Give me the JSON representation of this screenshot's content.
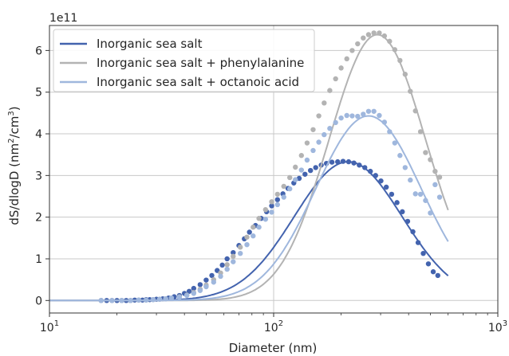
{
  "chart_data": {
    "type": "scatter",
    "title": "",
    "xlabel": "Diameter (nm)",
    "ylabel": "dS/dlogD (nm²/cm³)",
    "ylabel_parts": {
      "prefix": "dS/dlogD (nm",
      "sup1": "2",
      "mid": "/cm",
      "sup2": "3",
      "suffix": ")"
    },
    "y_offset_text": "1e11",
    "xscale": "log",
    "xlim": [
      10,
      1000
    ],
    "ylim": [
      -0.3,
      6.6
    ],
    "y_multiplier": 100000000000.0,
    "x_ticks": [
      10,
      100,
      1000
    ],
    "x_tick_labels": [
      {
        "base": "10",
        "exp": "1"
      },
      {
        "base": "10",
        "exp": "2"
      },
      {
        "base": "10",
        "exp": "3"
      }
    ],
    "y_ticks": [
      0,
      1,
      2,
      3,
      4,
      5,
      6
    ],
    "y_tick_labels": [
      "0",
      "1",
      "2",
      "3",
      "4",
      "5",
      "6"
    ],
    "grid": true,
    "legend_position": "top-left",
    "series": [
      {
        "name": "Inorganic sea salt",
        "color": "#4363ae",
        "fit": {
          "peak_x": 215,
          "peak_y": 3.33,
          "sigma": 0.24,
          "x_min": 10,
          "x_max": 600
        },
        "points": [
          [
            17,
            0.0
          ],
          [
            18,
            0.0
          ],
          [
            19,
            0.0
          ],
          [
            20,
            0.0
          ],
          [
            21,
            0.0
          ],
          [
            22,
            0.0
          ],
          [
            23,
            0.0
          ],
          [
            24,
            0.01
          ],
          [
            25,
            0.01
          ],
          [
            26,
            0.01
          ],
          [
            27,
            0.02
          ],
          [
            28,
            0.02
          ],
          [
            30,
            0.03
          ],
          [
            32,
            0.04
          ],
          [
            34,
            0.06
          ],
          [
            36,
            0.09
          ],
          [
            38,
            0.12
          ],
          [
            40,
            0.17
          ],
          [
            42,
            0.22
          ],
          [
            44,
            0.29
          ],
          [
            47,
            0.38
          ],
          [
            50,
            0.49
          ],
          [
            53,
            0.6
          ],
          [
            56,
            0.72
          ],
          [
            59,
            0.85
          ],
          [
            62,
            1.0
          ],
          [
            66,
            1.15
          ],
          [
            70,
            1.32
          ],
          [
            74,
            1.48
          ],
          [
            78,
            1.64
          ],
          [
            83,
            1.8
          ],
          [
            88,
            1.97
          ],
          [
            93,
            2.13
          ],
          [
            98,
            2.27
          ],
          [
            104,
            2.42
          ],
          [
            110,
            2.56
          ],
          [
            116,
            2.69
          ],
          [
            123,
            2.82
          ],
          [
            130,
            2.93
          ],
          [
            138,
            3.03
          ],
          [
            146,
            3.12
          ],
          [
            154,
            3.19
          ],
          [
            163,
            3.25
          ],
          [
            172,
            3.29
          ],
          [
            182,
            3.32
          ],
          [
            193,
            3.33
          ],
          [
            204,
            3.34
          ],
          [
            216,
            3.33
          ],
          [
            228,
            3.3
          ],
          [
            241,
            3.25
          ],
          [
            255,
            3.19
          ],
          [
            270,
            3.1
          ],
          [
            285,
            3.0
          ],
          [
            301,
            2.87
          ],
          [
            318,
            2.72
          ],
          [
            336,
            2.55
          ],
          [
            355,
            2.35
          ],
          [
            375,
            2.13
          ],
          [
            396,
            1.9
          ],
          [
            418,
            1.65
          ],
          [
            441,
            1.39
          ],
          [
            465,
            1.13
          ],
          [
            490,
            0.88
          ],
          [
            515,
            0.69
          ],
          [
            540,
            0.6
          ]
        ]
      },
      {
        "name": "Inorganic sea salt + phenylalanine",
        "color": "#b3b3b3",
        "fit": {
          "peak_x": 290,
          "peak_y": 6.38,
          "sigma": 0.215,
          "x_min": 10,
          "x_max": 600
        },
        "points": [
          [
            17,
            0.0
          ],
          [
            19,
            0.0
          ],
          [
            21,
            0.0
          ],
          [
            23,
            0.0
          ],
          [
            25,
            0.01
          ],
          [
            27,
            0.01
          ],
          [
            29,
            0.02
          ],
          [
            31,
            0.03
          ],
          [
            33,
            0.04
          ],
          [
            35,
            0.06
          ],
          [
            38,
            0.09
          ],
          [
            41,
            0.13
          ],
          [
            44,
            0.19
          ],
          [
            47,
            0.27
          ],
          [
            50,
            0.37
          ],
          [
            54,
            0.5
          ],
          [
            58,
            0.66
          ],
          [
            62,
            0.86
          ],
          [
            66,
            1.06
          ],
          [
            71,
            1.28
          ],
          [
            76,
            1.52
          ],
          [
            81,
            1.76
          ],
          [
            86,
            1.97
          ],
          [
            92,
            2.18
          ],
          [
            98,
            2.37
          ],
          [
            104,
            2.55
          ],
          [
            111,
            2.74
          ],
          [
            118,
            2.95
          ],
          [
            125,
            3.2
          ],
          [
            133,
            3.48
          ],
          [
            141,
            3.78
          ],
          [
            150,
            4.1
          ],
          [
            159,
            4.43
          ],
          [
            168,
            4.74
          ],
          [
            178,
            5.04
          ],
          [
            189,
            5.32
          ],
          [
            200,
            5.58
          ],
          [
            212,
            5.8
          ],
          [
            224,
            6.0
          ],
          [
            237,
            6.16
          ],
          [
            251,
            6.3
          ],
          [
            265,
            6.38
          ],
          [
            280,
            6.42
          ],
          [
            296,
            6.42
          ],
          [
            312,
            6.35
          ],
          [
            329,
            6.22
          ],
          [
            347,
            6.02
          ],
          [
            366,
            5.76
          ],
          [
            386,
            5.43
          ],
          [
            407,
            5.02
          ],
          [
            429,
            4.55
          ],
          [
            452,
            4.05
          ],
          [
            476,
            3.55
          ],
          [
            500,
            3.38
          ],
          [
            525,
            3.1
          ],
          [
            550,
            2.96
          ]
        ]
      },
      {
        "name": "Inorganic sea salt + octanoic acid",
        "color": "#9fb7dd",
        "fit": {
          "peak_x": 265,
          "peak_y": 4.43,
          "sigma": 0.235,
          "x_min": 10,
          "x_max": 600
        },
        "points": [
          [
            17,
            0.0
          ],
          [
            19,
            0.0
          ],
          [
            21,
            0.0
          ],
          [
            23,
            0.0
          ],
          [
            25,
            0.01
          ],
          [
            27,
            0.01
          ],
          [
            29,
            0.02
          ],
          [
            31,
            0.03
          ],
          [
            33,
            0.04
          ],
          [
            35,
            0.06
          ],
          [
            38,
            0.08
          ],
          [
            41,
            0.12
          ],
          [
            44,
            0.17
          ],
          [
            47,
            0.24
          ],
          [
            50,
            0.33
          ],
          [
            54,
            0.44
          ],
          [
            58,
            0.58
          ],
          [
            62,
            0.75
          ],
          [
            66,
            0.93
          ],
          [
            71,
            1.13
          ],
          [
            76,
            1.34
          ],
          [
            81,
            1.55
          ],
          [
            86,
            1.76
          ],
          [
            92,
            1.95
          ],
          [
            98,
            2.12
          ],
          [
            104,
            2.3
          ],
          [
            111,
            2.48
          ],
          [
            118,
            2.68
          ],
          [
            125,
            2.9
          ],
          [
            133,
            3.13
          ],
          [
            141,
            3.37
          ],
          [
            150,
            3.6
          ],
          [
            159,
            3.8
          ],
          [
            168,
            3.98
          ],
          [
            178,
            4.13
          ],
          [
            189,
            4.27
          ],
          [
            200,
            4.38
          ],
          [
            212,
            4.44
          ],
          [
            224,
            4.43
          ],
          [
            237,
            4.42
          ],
          [
            251,
            4.47
          ],
          [
            265,
            4.54
          ],
          [
            280,
            4.54
          ],
          [
            296,
            4.44
          ],
          [
            312,
            4.28
          ],
          [
            329,
            4.05
          ],
          [
            347,
            3.78
          ],
          [
            366,
            3.48
          ],
          [
            386,
            3.19
          ],
          [
            407,
            2.89
          ],
          [
            429,
            2.56
          ],
          [
            452,
            2.55
          ],
          [
            476,
            2.4
          ],
          [
            500,
            2.1
          ],
          [
            525,
            2.78
          ],
          [
            550,
            2.48
          ]
        ]
      }
    ]
  }
}
